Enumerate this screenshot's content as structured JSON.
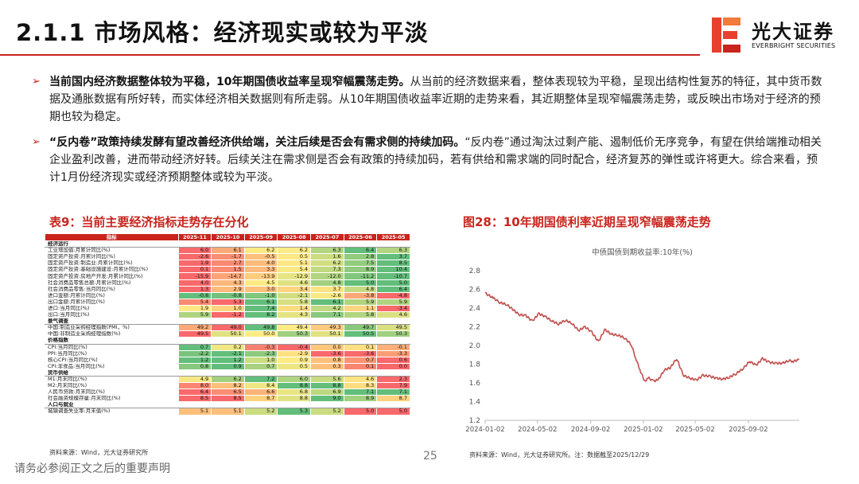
{
  "header": {
    "title": "2.1.1 市场风格：经济现实或较为平淡",
    "logo_cn": "光大证券",
    "logo_en": "EVERBRIGHT SECURITIES"
  },
  "bullets": [
    {
      "bold": "当前国内经济数据整体较为平稳，10年期国债收益率呈现窄幅震荡走势。",
      "text": "从当前的经济数据来看，整体表现较为平稳，呈现出结构性复苏的特征，其中货币数据及通胀数据有所好转，而实体经济相关数据则有所走弱。从10年期国债收益率近期的走势来看，其近期整体呈现窄幅震荡走势，或反映出市场对于经济的预期也较为稳定。"
    },
    {
      "bold": "“反内卷”政策持续发酵有望改善经济供给端，关注后续是否会有需求侧的持续加码。",
      "text": "“反内卷”通过淘汰过剩产能、遏制低价无序竞争，有望在供给端推动相关企业盈利改善，进而带动经济好转。后续关注在需求侧是否会有政策的持续加码，若有供给和需求端的同时配合，经济复苏的弹性或许将更大。综合来看，预计1月份经济现实或经济预期整体或较为平淡。"
    }
  ],
  "table": {
    "caption": "表9：当前主要经济指标走势存在分化",
    "columns": [
      "指标",
      "2025-11",
      "2025-10",
      "2025-09",
      "2025-08",
      "2025-07",
      "2025-06",
      "2025-05"
    ],
    "rows": [
      {
        "group": "经济运行"
      },
      {
        "label": "工业增加值:月累计同比(%)",
        "values": [
          "6.0",
          "6.1",
          "6.2",
          "6.2",
          "6.3",
          "6.4",
          "6.3"
        ]
      },
      {
        "label": "固定资产投资:月累计同比(%)",
        "values": [
          "-2.6",
          "-1.7",
          "-0.5",
          "0.5",
          "1.6",
          "2.8",
          "3.7"
        ]
      },
      {
        "label": "固定资产投资:制造业:月累计同比(%)",
        "values": [
          "1.9",
          "2.7",
          "4.0",
          "5.1",
          "6.2",
          "7.5",
          "8.5"
        ]
      },
      {
        "label": "固定资产投资:基础设施建设:月累计同比(%)",
        "values": [
          "0.1",
          "1.5",
          "3.3",
          "5.4",
          "7.3",
          "8.9",
          "10.4"
        ]
      },
      {
        "label": "固定资产投资:房地产开发:月累计同比(%)",
        "values": [
          "-15.9",
          "-14.7",
          "-13.9",
          "-12.9",
          "-12.0",
          "-11.2",
          "-10.7"
        ]
      },
      {
        "label": "社会消费品零售总额:月累计同比(%)",
        "values": [
          "4.0",
          "4.3",
          "4.5",
          "4.6",
          "4.8",
          "5.0",
          "5.0"
        ]
      },
      {
        "label": "社会消费品零售:当月同比(%)",
        "values": [
          "1.3",
          "2.9",
          "3.0",
          "3.4",
          "3.7",
          "4.8",
          "6.4"
        ]
      },
      {
        "label": "进口金额:月累计同比(%)",
        "values": [
          "-0.6",
          "-0.8",
          "-1.0",
          "-2.1",
          "-2.6",
          "-3.8",
          "-4.8"
        ]
      },
      {
        "label": "出口金额:月累计同比(%)",
        "values": [
          "5.4",
          "5.3",
          "6.1",
          "5.8",
          "6.1",
          "5.9",
          "5.9"
        ]
      },
      {
        "label": "进口:当月同比(%)",
        "values": [
          "1.9",
          "1.0",
          "7.4",
          "1.4",
          "4.2",
          "1.1",
          "-3.4"
        ]
      },
      {
        "label": "出口:当月同比(%)",
        "values": [
          "5.9",
          "-1.2",
          "8.2",
          "4.3",
          "7.1",
          "5.8",
          "4.6"
        ]
      },
      {
        "group": "景气调查"
      },
      {
        "label": "中国:制造业采购经理指数(PMI，%)",
        "values": [
          "49.2",
          "49.0",
          "49.8",
          "49.4",
          "49.3",
          "49.7",
          "49.5"
        ]
      },
      {
        "label": "中国:非制造业采购经理指数(%)",
        "values": [
          "49.5",
          "50.1",
          "50.0",
          "50.3",
          "50.1",
          "50.5",
          "50.3"
        ]
      },
      {
        "group": "价格指数"
      },
      {
        "label": "CPI:当月同比(%)",
        "values": [
          "0.7",
          "0.2",
          "-0.3",
          "-0.4",
          "0.0",
          "0.1",
          "-0.1"
        ]
      },
      {
        "label": "PPI:当月同比(%)",
        "values": [
          "-2.2",
          "-2.1",
          "-2.3",
          "-2.9",
          "-3.6",
          "-3.6",
          "-3.3"
        ]
      },
      {
        "label": "核心CPI:当月同比(%)",
        "values": [
          "1.2",
          "1.2",
          "1.0",
          "0.9",
          "0.8",
          "0.7",
          "0.6"
        ]
      },
      {
        "label": "CPI:非食品:当月同比(%)",
        "values": [
          "0.8",
          "0.9",
          "0.7",
          "0.5",
          "0.3",
          "0.1",
          "0.0"
        ]
      },
      {
        "group": "货币供给"
      },
      {
        "label": "M1:月末同比(%)",
        "values": [
          "4.9",
          "6.2",
          "7.2",
          "6.0",
          "5.6",
          "4.6",
          "2.3"
        ]
      },
      {
        "label": "M2:月末同比(%)",
        "values": [
          "8.0",
          "8.2",
          "8.4",
          "8.8",
          "8.8",
          "8.3",
          "7.9"
        ]
      },
      {
        "label": "人民币贷款:月末同比(%)",
        "values": [
          "6.4",
          "6.5",
          "6.6",
          "6.8",
          "6.9",
          "7.1",
          "7.1"
        ]
      },
      {
        "label": "社会融资规模存量:月末同比(%)",
        "values": [
          "8.5",
          "8.5",
          "8.7",
          "8.8",
          "9.0",
          "8.9",
          "8.7"
        ]
      },
      {
        "group": "人口与就业"
      },
      {
        "label": "城镇调查失业率:月末值(%)",
        "values": [
          "5.1",
          "5.1",
          "5.2",
          "5.3",
          "5.2",
          "5.0",
          "5.0"
        ]
      }
    ],
    "source": "资料来源：Wind，光大证券研究所"
  },
  "figure": {
    "caption": "图28：10年期国债利率近期呈现窄幅震荡走势",
    "source": "资料来源：Wind，光大证券研究所。注：数据截至2025/12/29"
  },
  "chart_data": {
    "type": "line",
    "title": "中债国债到期收益率:10年(%)",
    "xlabel": "",
    "ylabel": "",
    "x_ticks": [
      "2024-01-02",
      "2024-05-02",
      "2024-09-02",
      "2025-01-02",
      "2025-05-02",
      "2025-09-02"
    ],
    "y_ticks": [
      1.2,
      1.4,
      1.6,
      1.8,
      2.0,
      2.2,
      2.4,
      2.6,
      2.8
    ],
    "ylim": [
      1.2,
      2.8
    ],
    "xlim": [
      "2024-01-02",
      "2025-12-29"
    ],
    "grid": false,
    "color": "#c0504d",
    "series": [
      {
        "x": [
          "2024-01-02",
          "2024-01-20",
          "2024-02-05",
          "2024-02-20",
          "2024-03-05",
          "2024-03-20",
          "2024-04-05",
          "2024-04-20",
          "2024-05-05",
          "2024-05-20",
          "2024-06-05",
          "2024-06-20",
          "2024-07-05",
          "2024-07-20",
          "2024-08-05",
          "2024-08-20",
          "2024-09-05",
          "2024-09-20",
          "2024-10-05",
          "2024-10-20",
          "2024-11-05",
          "2024-11-20",
          "2024-12-05",
          "2024-12-15",
          "2024-12-25",
          "2025-01-05",
          "2025-01-15",
          "2025-01-25",
          "2025-02-05",
          "2025-02-20",
          "2025-03-05",
          "2025-03-20",
          "2025-04-05",
          "2025-04-20",
          "2025-05-05",
          "2025-05-20",
          "2025-06-05",
          "2025-06-20",
          "2025-07-05",
          "2025-07-20",
          "2025-08-05",
          "2025-08-20",
          "2025-09-05",
          "2025-09-20",
          "2025-10-05",
          "2025-10-20",
          "2025-11-05",
          "2025-11-20",
          "2025-12-05",
          "2025-12-15",
          "2025-12-29"
        ],
        "y": [
          2.56,
          2.51,
          2.46,
          2.44,
          2.39,
          2.33,
          2.32,
          2.26,
          2.34,
          2.31,
          2.26,
          2.23,
          2.27,
          2.24,
          2.16,
          2.2,
          2.14,
          2.04,
          2.17,
          2.12,
          2.11,
          2.08,
          2.01,
          1.87,
          1.74,
          1.62,
          1.65,
          1.62,
          1.63,
          1.74,
          1.76,
          1.86,
          1.68,
          1.65,
          1.63,
          1.68,
          1.67,
          1.65,
          1.64,
          1.66,
          1.7,
          1.75,
          1.83,
          1.79,
          1.86,
          1.82,
          1.81,
          1.81,
          1.84,
          1.83,
          1.85
        ]
      }
    ]
  },
  "footer": {
    "page": "25",
    "disclaimer": "请务必参阅正文之后的重要声明"
  }
}
